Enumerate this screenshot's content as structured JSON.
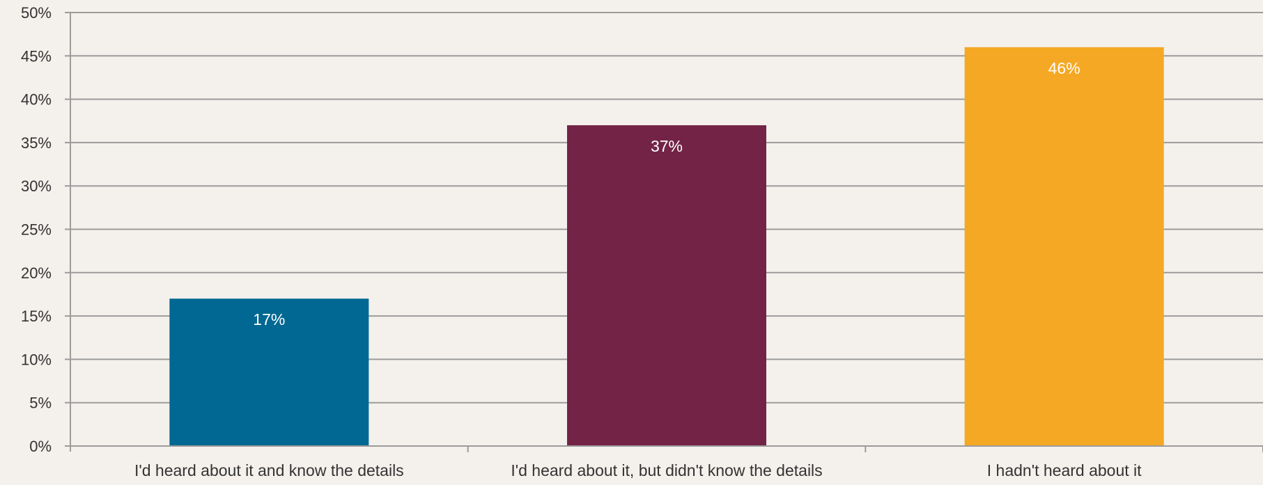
{
  "chart_data": {
    "type": "bar",
    "title": "",
    "xlabel": "",
    "ylabel": "",
    "categories": [
      "I'd heard about it and know the details",
      "I'd heard about it, but didn't know the details",
      "I hadn't heard about it"
    ],
    "values": [
      17,
      37,
      46
    ],
    "data_labels": [
      "17%",
      "37%",
      "46%"
    ],
    "colors": [
      "#006892",
      "#732446",
      "#f5a824"
    ],
    "ylim": [
      0,
      50
    ],
    "yticks": [
      0,
      5,
      10,
      15,
      20,
      25,
      30,
      35,
      40,
      45,
      50
    ],
    "ytick_labels": [
      "0%",
      "5%",
      "10%",
      "15%",
      "20%",
      "25%",
      "30%",
      "35%",
      "40%",
      "45%",
      "50%"
    ],
    "grid": true,
    "legend": "none"
  }
}
